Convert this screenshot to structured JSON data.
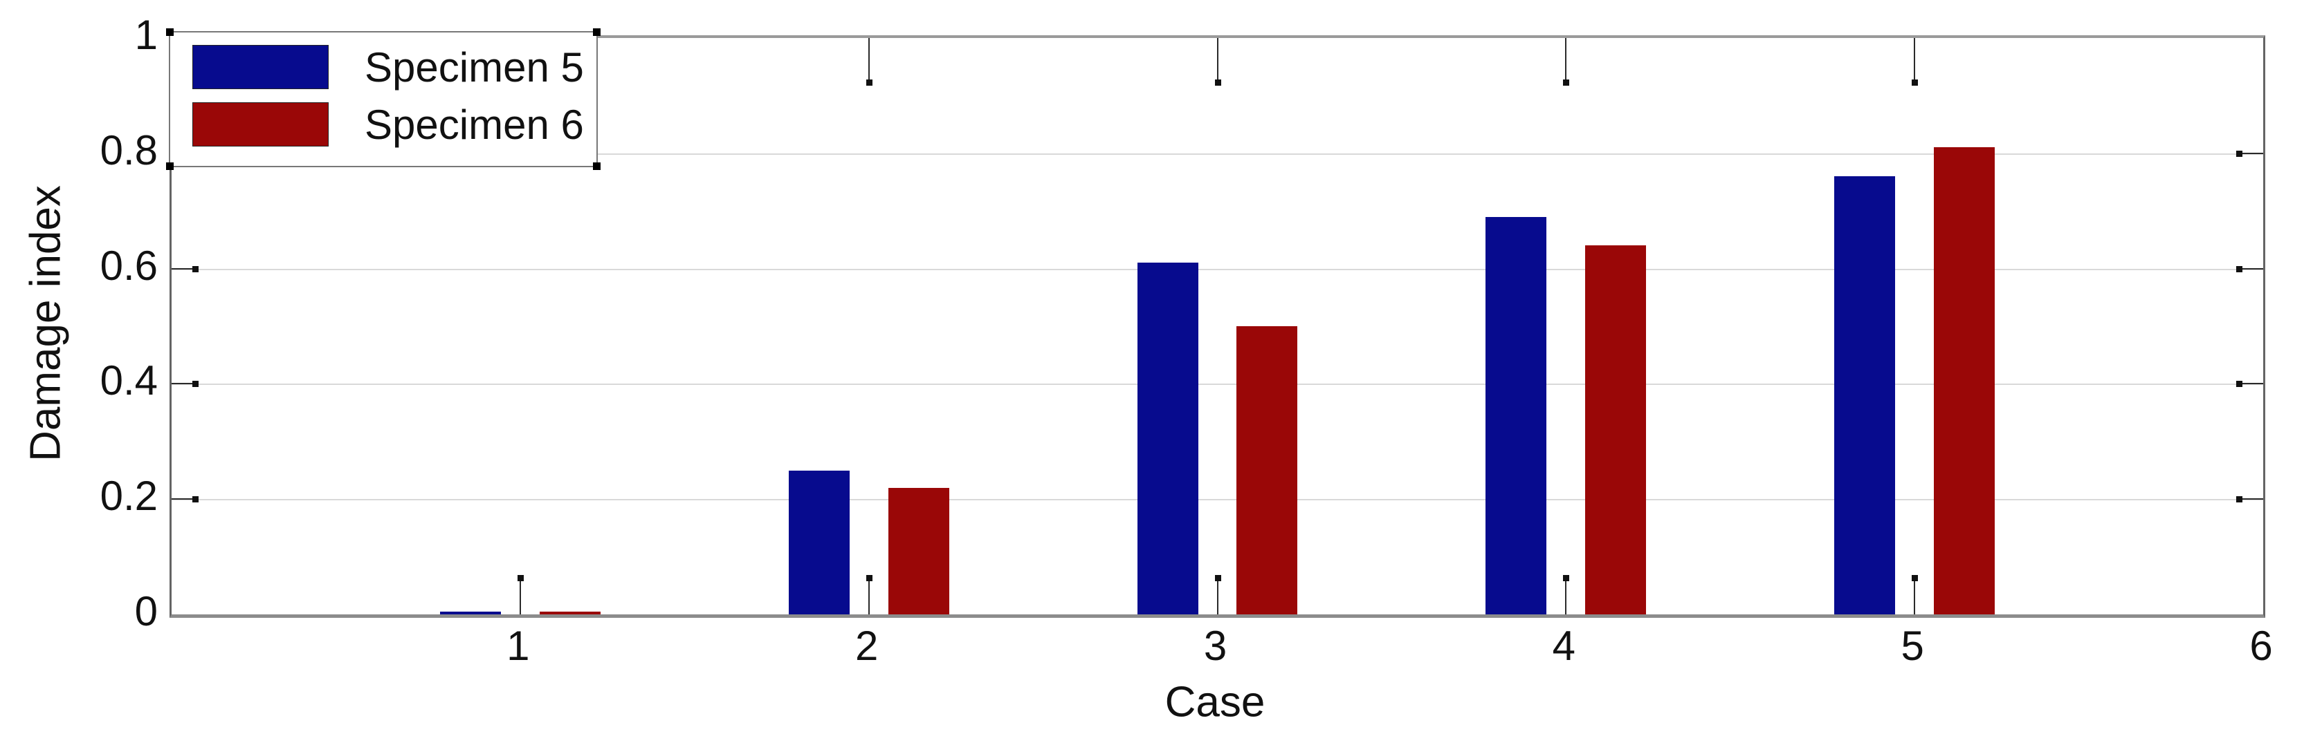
{
  "chart_data": {
    "type": "bar",
    "title": "",
    "xlabel": "Case",
    "ylabel": "Damage index",
    "categories": [
      "1",
      "2",
      "3",
      "4",
      "5",
      "6"
    ],
    "series": [
      {
        "name": "Specimen 5",
        "color": "#070b8e",
        "values": [
          0.005,
          0.25,
          0.61,
          0.69,
          0.76,
          null
        ]
      },
      {
        "name": "Specimen 6",
        "color": "#9a0707",
        "values": [
          0.005,
          0.22,
          0.5,
          0.64,
          0.81,
          null
        ]
      }
    ],
    "xlim": [
      0,
      6
    ],
    "ylim": [
      0,
      1
    ],
    "yticks": [
      0,
      0.2,
      0.4,
      0.6,
      0.8,
      1
    ],
    "ytick_labels": [
      "0",
      "0.2",
      "0.4",
      "0.6",
      "0.8",
      "1"
    ],
    "grid": "horizontal",
    "legend_position": "top-left"
  },
  "legend": {
    "item1": "Specimen 5",
    "item2": "Specimen 6"
  },
  "axes": {
    "x_title": "Case",
    "y_title": "Damage index"
  },
  "colors": {
    "series1": "#070b8e",
    "series2": "#9a0707",
    "gridline": "#d9d9d9",
    "axis_frame": "#8c8c8c",
    "tick": "#2a2a2a",
    "background": "#ffffff"
  }
}
